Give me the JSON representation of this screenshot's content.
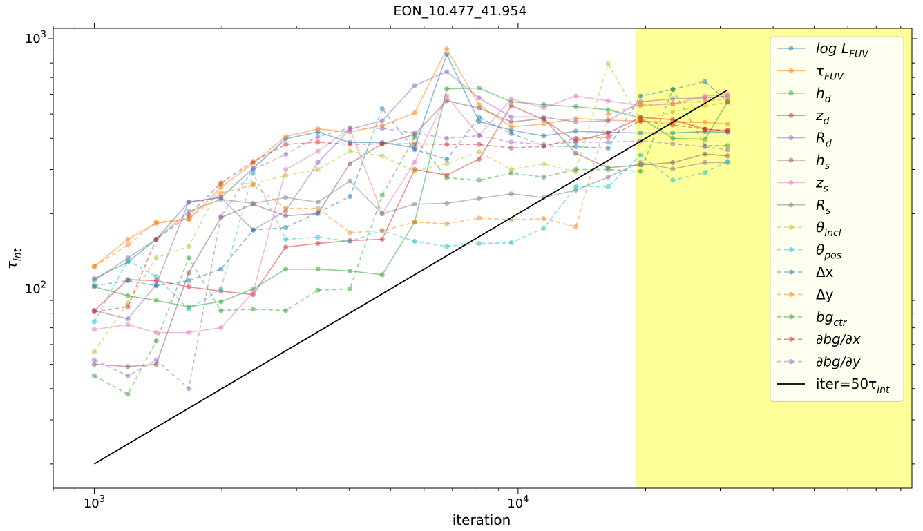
{
  "chart_data": {
    "type": "line",
    "title": "EON_10.477_41.954",
    "xlabel": "iteration",
    "ylabel": "τ_int",
    "xscale": "log",
    "yscale": "log",
    "xlim": [
      800,
      85000
    ],
    "ylim": [
      16,
      1100
    ],
    "x_ticks": [
      {
        "value": 1000,
        "label": "10^3"
      },
      {
        "value": 10000,
        "label": "10^4"
      }
    ],
    "y_ticks": [
      {
        "value": 100,
        "label": "10^2"
      },
      {
        "value": 1000,
        "label": "10^3"
      }
    ],
    "grid": false,
    "legend_position": "upper right",
    "shaded_region": {
      "x_from": 18900,
      "x_to": 85000,
      "color": "#ffff99"
    },
    "x": [
      1000,
      1200,
      1400,
      1670,
      1990,
      2370,
      2830,
      3370,
      4010,
      4780,
      5700,
      6790,
      8090,
      9640,
      11490,
      13690,
      16310,
      19440,
      23170,
      27600,
      31230
    ],
    "series": [
      {
        "name": "log L_FUV",
        "label_main": "log L",
        "label_sub": "FUV",
        "label_italic": true,
        "color": "#1f77b4",
        "style": "solid",
        "values": [
          110,
          128,
          158,
          222,
          232,
          303,
          398,
          424,
          385,
          385,
          367,
          865,
          467,
          431,
          409,
          427,
          422,
          420,
          420,
          425,
          423
        ]
      },
      {
        "name": "τ_FUV",
        "label_main": "τ",
        "label_sub": "FUV",
        "label_italic": false,
        "color": "#ff7f0e",
        "style": "solid",
        "values": [
          123,
          158,
          183,
          190,
          255,
          318,
          406,
          436,
          424,
          450,
          505,
          910,
          544,
          444,
          456,
          480,
          473,
          468,
          463,
          463,
          456
        ]
      },
      {
        "name": "h_d",
        "label_main": "h",
        "label_sub": "d",
        "label_italic": true,
        "color": "#2ca02c",
        "style": "solid",
        "values": [
          102,
          94,
          90,
          85,
          89,
          100,
          120,
          120,
          118,
          114,
          185,
          630,
          635,
          560,
          545,
          535,
          520,
          483,
          400,
          396,
          560
        ]
      },
      {
        "name": "z_d",
        "label_main": "z",
        "label_sub": "d",
        "label_italic": true,
        "color": "#d62728",
        "style": "solid",
        "values": [
          82,
          109,
          108,
          102,
          98,
          95,
          147,
          152,
          156,
          158,
          300,
          285,
          330,
          540,
          475,
          390,
          420,
          485,
          475,
          435,
          428
        ]
      },
      {
        "name": "R_d",
        "label_main": "R",
        "label_sub": "d",
        "label_italic": true,
        "color": "#9467bd",
        "style": "solid",
        "values": [
          82,
          76,
          104,
          223,
          232,
          172,
          205,
          320,
          435,
          470,
          650,
          738,
          580,
          487,
          486,
          465,
          470,
          560,
          575,
          580,
          590
        ]
      },
      {
        "name": "h_s",
        "label_main": "h",
        "label_sub": "s",
        "label_italic": true,
        "color": "#8c564b",
        "style": "solid",
        "values": [
          50,
          49,
          50,
          116,
          193,
          218,
          196,
          200,
          317,
          380,
          415,
          565,
          528,
          465,
          480,
          348,
          305,
          313,
          320,
          346,
          340
        ]
      },
      {
        "name": "z_s",
        "label_main": "z",
        "label_sub": "s",
        "label_italic": true,
        "color": "#e377c2",
        "style": "solid",
        "values": [
          69,
          72,
          67,
          67,
          70,
          97,
          300,
          355,
          438,
          200,
          321,
          590,
          410,
          575,
          530,
          590,
          565,
          540,
          548,
          590,
          600
        ]
      },
      {
        "name": "R_s",
        "label_main": "R",
        "label_sub": "s",
        "label_italic": true,
        "color": "#7f7f7f",
        "style": "solid",
        "values": [
          108,
          133,
          158,
          204,
          228,
          220,
          232,
          222,
          270,
          200,
          218,
          220,
          230,
          240,
          232,
          248,
          280,
          320,
          302,
          320,
          320
        ]
      },
      {
        "name": "θ_incl",
        "label_main": "θ",
        "label_sub": "incl",
        "label_italic": true,
        "color": "#bcbd22",
        "style": "dashed",
        "values": [
          56,
          88,
          133,
          148,
          262,
          264,
          284,
          300,
          355,
          340,
          295,
          317,
          353,
          300,
          316,
          294,
          795,
          470,
          510,
          540,
          555
        ]
      },
      {
        "name": "θ_pos",
        "label_main": "θ",
        "label_sub": "pos",
        "label_italic": true,
        "color": "#17becf",
        "style": "dashed",
        "values": [
          74,
          130,
          112,
          83,
          100,
          290,
          158,
          161,
          155,
          171,
          155,
          148,
          152,
          153,
          175,
          256,
          256,
          343,
          272,
          292,
          323
        ]
      },
      {
        "name": "Δx",
        "label_main": "Δx",
        "label_sub": "",
        "label_italic": false,
        "color": "#1f77b4",
        "style": "dashed",
        "values": [
          103,
          108,
          103,
          108,
          120,
          172,
          176,
          202,
          234,
          525,
          360,
          330,
          485,
          418,
          373,
          370,
          365,
          590,
          627,
          675,
          560
        ]
      },
      {
        "name": "Δy",
        "label_main": "Δy",
        "label_sub": "",
        "label_italic": false,
        "color": "#ff7f0e",
        "style": "dashed",
        "values": [
          123,
          150,
          185,
          190,
          242,
          260,
          210,
          210,
          168,
          171,
          185,
          182,
          192,
          189,
          191,
          177,
          500,
          545,
          550,
          565,
          573
        ]
      },
      {
        "name": "bg_ctr",
        "label_main": "bg",
        "label_sub": "ctr",
        "label_italic": true,
        "color": "#2ca02c",
        "style": "dashed",
        "values": [
          45,
          38,
          62,
          133,
          82,
          83,
          82,
          99,
          100,
          237,
          403,
          278,
          272,
          290,
          280,
          300,
          300,
          295,
          627,
          374,
          374
        ]
      },
      {
        "name": "∂bg/∂x",
        "label_main": "∂bg/∂x",
        "label_sub": "",
        "label_italic": true,
        "color": "#d62728",
        "style": "dashed",
        "values": [
          81,
          85,
          158,
          197,
          265,
          323,
          378,
          386,
          378,
          380,
          380,
          378,
          378,
          366,
          371,
          400,
          404,
          470,
          452,
          435,
          430
        ]
      },
      {
        "name": "∂bg/∂y",
        "label_main": "∂bg/∂y",
        "label_sub": "",
        "label_italic": true,
        "color": "#9467bd",
        "style": "dashed",
        "values": [
          52,
          45,
          52,
          40,
          195,
          300,
          345,
          406,
          440,
          438,
          420,
          400,
          410,
          386,
          378,
          386,
          386,
          390,
          380,
          370,
          360
        ]
      },
      {
        "name": "iter=50τ_int",
        "label_main": "iter=50τ",
        "label_sub": "int",
        "label_italic": false,
        "color": "#000000",
        "style": "reference",
        "x": [
          1000,
          31230
        ],
        "values": [
          20,
          624.6
        ]
      }
    ]
  }
}
